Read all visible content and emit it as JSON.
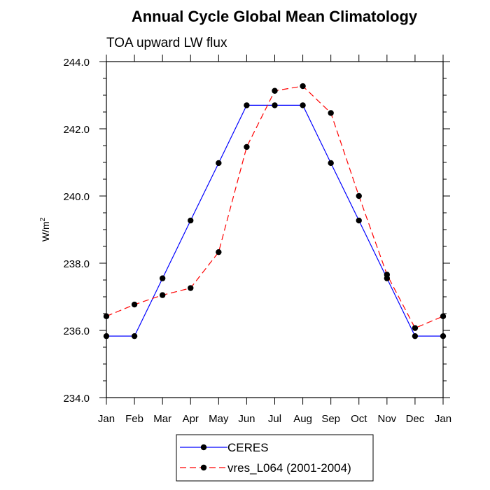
{
  "chart_data": {
    "type": "line",
    "title": "Annual Cycle Global Mean Climatology",
    "subtitle": "TOA upward LW flux",
    "ylabel": "W/m",
    "ylabel_sup": "2",
    "xlabel": "",
    "categories": [
      "Jan",
      "Feb",
      "Mar",
      "Apr",
      "May",
      "Jun",
      "Jul",
      "Aug",
      "Sep",
      "Oct",
      "Nov",
      "Dec",
      "Jan"
    ],
    "ylim": [
      234.0,
      244.0
    ],
    "yticks": [
      "234.0",
      "236.0",
      "238.0",
      "240.0",
      "242.0",
      "244.0"
    ],
    "ytick_values": [
      234.0,
      236.0,
      238.0,
      240.0,
      242.0,
      244.0
    ],
    "grid": false,
    "legend_placement": "bottom",
    "series": [
      {
        "name": "CERES",
        "color": "#0000ff",
        "dash": "solid",
        "marker": "filled-circle",
        "values": [
          235.83,
          235.83,
          237.55,
          239.27,
          240.98,
          242.7,
          242.7,
          242.7,
          240.98,
          239.27,
          237.55,
          235.83,
          235.83
        ]
      },
      {
        "name": "vres_L064 (2001-2004)",
        "color": "#ff0000",
        "dash": "dashed",
        "marker": "filled-circle",
        "values": [
          236.42,
          236.77,
          237.05,
          237.26,
          238.33,
          241.46,
          243.13,
          243.27,
          242.47,
          240.0,
          237.66,
          236.07,
          236.42
        ]
      }
    ]
  }
}
